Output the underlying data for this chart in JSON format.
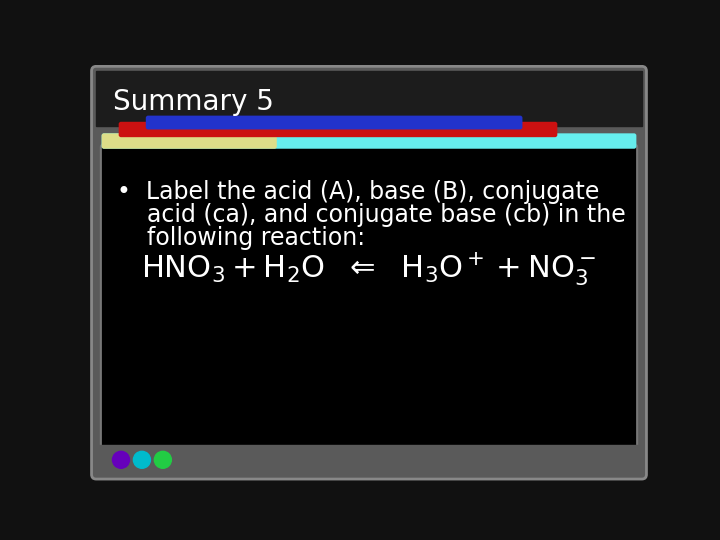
{
  "title": "Summary 5",
  "title_color": "#ffffff",
  "title_fontsize": 20,
  "bg_color": "#111111",
  "outer_bg": "#3a3a3a",
  "content_bg": "#000000",
  "bar_blue_color": "#2233cc",
  "bar_red_color": "#cc1111",
  "bar_cyan_color": "#66eeee",
  "bar_yellow_color": "#dddd88",
  "circle_colors": [
    "#6600bb",
    "#00bbcc",
    "#22cc44"
  ],
  "text_color": "#ffffff",
  "content_fontsize": 17,
  "reaction_fontsize": 22,
  "bullet_line1": "•  Label the acid (A), base (B), conjugate",
  "bullet_line2": "    acid (ca), and conjugate base (cb) in the",
  "bullet_line3": "    following reaction:"
}
